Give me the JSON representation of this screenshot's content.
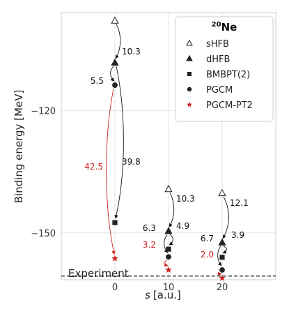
{
  "chart_data": {
    "type": "scatter",
    "xlabel_var": "s",
    "xlabel_unit": "[a.u.]",
    "ylabel": "Binding energy [MeV]",
    "xlim": [
      -10,
      30
    ],
    "ylim": [
      -161.5,
      -96
    ],
    "x_ticks": [
      0,
      10,
      20
    ],
    "y_ticks": [
      -120,
      -150
    ],
    "grid": true,
    "legend": {
      "title_mass": "20",
      "title_element": "Ne",
      "placement": "top-right"
    },
    "series": [
      {
        "name": "sHFB",
        "marker": "triangle-open",
        "color": "#222222",
        "x": [
          0,
          10,
          20
        ],
        "y": [
          -98.0,
          -139.3,
          -140.3
        ]
      },
      {
        "name": "dHFB",
        "marker": "triangle-filled",
        "color": "#222222",
        "x": [
          0,
          10,
          20
        ],
        "y": [
          -108.3,
          -149.6,
          -152.4
        ]
      },
      {
        "name": "BMBPT(2)",
        "marker": "square",
        "color": "#222222",
        "x": [
          0,
          10,
          20
        ],
        "y": [
          -147.5,
          -154.0,
          -156.0
        ]
      },
      {
        "name": "PGCM",
        "marker": "circle",
        "color": "#222222",
        "x": [
          0,
          10,
          20
        ],
        "y": [
          -113.8,
          -155.9,
          -159.1
        ]
      },
      {
        "name": "PGCM-PT2",
        "marker": "star",
        "color": "#cc2020",
        "x": [
          0,
          10,
          20
        ],
        "y": [
          -156.3,
          -159.1,
          -161.1
        ]
      }
    ],
    "reference_line": {
      "label": "Experiment",
      "y": -160.6,
      "style": "dashed"
    },
    "annotations": [
      {
        "text": "10.3",
        "color": "#111111"
      },
      {
        "text": "5.5",
        "color": "#111111"
      },
      {
        "text": "39.8",
        "color": "#111111"
      },
      {
        "text": "42.5",
        "color": "#cc2020"
      },
      {
        "text": "10.3",
        "color": "#111111"
      },
      {
        "text": "6.3",
        "color": "#111111"
      },
      {
        "text": "4.9",
        "color": "#111111"
      },
      {
        "text": "3.2",
        "color": "#cc2020"
      },
      {
        "text": "12.1",
        "color": "#111111"
      },
      {
        "text": "6.7",
        "color": "#111111"
      },
      {
        "text": "3.9",
        "color": "#111111"
      },
      {
        "text": "2.0",
        "color": "#cc2020"
      }
    ]
  }
}
